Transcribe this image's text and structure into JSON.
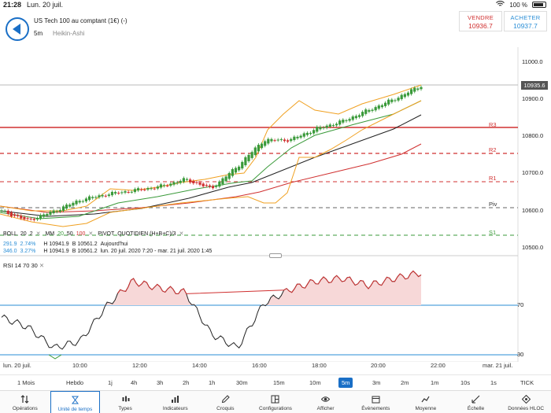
{
  "statusbar": {
    "time": "21:28",
    "date": "Lun. 20 juil.",
    "battery": "100 %"
  },
  "header": {
    "instrument": "US Tech 100 au comptant (1€) (-)",
    "timeframe": "5m",
    "chart_type": "Heikin-Ashi",
    "sell_label": "VENDRE",
    "sell_value": "10936.7",
    "buy_label": "ACHETER",
    "buy_value": "10937.7"
  },
  "colors": {
    "sell": "#d03030",
    "buy": "#2a8ed6",
    "accent": "#1a6fc6",
    "up_candle": "#3a9a3a",
    "down_candle": "#d03030",
    "bollinger": "#f0a020",
    "ma20": "#3a9a3a",
    "ma50": "#222222",
    "ma100": "#d03030"
  },
  "price_axis": {
    "labels": [
      "11000.0",
      "10900.0",
      "10800.0",
      "10700.0",
      "10600.0",
      "10500.0"
    ],
    "current": "10935.6"
  },
  "pivots": [
    {
      "label": "R3"
    },
    {
      "label": "R2"
    },
    {
      "label": "R1"
    },
    {
      "label": "Piv"
    },
    {
      "label": "S1"
    }
  ],
  "indicators": {
    "row1": {
      "boll": "BOLL",
      "boll_p1": "20",
      "boll_p2": "2",
      "mm": "MM",
      "mm_p1": "20",
      "mm_p2": "50",
      "mm_p3": "100",
      "pivot": "PIVOT",
      "pivot_text": "QUOTIDIEN (H+B+C)/3"
    },
    "row2": {
      "a": "291.9",
      "b": "2.74%",
      "h": "H 10941.9",
      "l": "B 10561.2",
      "period": "Aujourd'hui"
    },
    "row3": {
      "a": "346.0",
      "b": "3.27%",
      "h": "H 10941.9",
      "l": "B 10561.2",
      "period": "lun. 20 juil. 2020 7:20 - mar. 21 juil. 2020 1:45"
    }
  },
  "rsi": {
    "label": "RSI",
    "p1": "14",
    "p2": "70",
    "p3": "30",
    "level_high": "70",
    "level_low": "30"
  },
  "time_axis": [
    "lun. 20 juil.",
    "10:00",
    "12:00",
    "14:00",
    "16:00",
    "18:00",
    "20:00",
    "22:00",
    "mar. 21 juil."
  ],
  "timeframes": [
    "1 Mois",
    "Hebdo",
    "1j",
    "4h",
    "3h",
    "2h",
    "1h",
    "30m",
    "15m",
    "10m",
    "5m",
    "3m",
    "2m",
    "1m",
    "10s",
    "1s",
    "TICK"
  ],
  "active_timeframe": "5m",
  "toolbar": [
    {
      "label": "Opérations",
      "icon": "swap-arrows-icon"
    },
    {
      "label": "Unité de temps",
      "icon": "hourglass-icon"
    },
    {
      "label": "Types",
      "icon": "candles-icon"
    },
    {
      "label": "Indicateurs",
      "icon": "bar-chart-icon"
    },
    {
      "label": "Croquis",
      "icon": "pencil-icon"
    },
    {
      "label": "Configurations",
      "icon": "layout-icon"
    },
    {
      "label": "Afficher",
      "icon": "eye-icon"
    },
    {
      "label": "Évènements",
      "icon": "calendar-icon"
    },
    {
      "label": "Moyenne",
      "icon": "average-icon"
    },
    {
      "label": "Échelle",
      "icon": "scale-icon"
    },
    {
      "label": "Données HLOC",
      "icon": "crosshair-icon"
    }
  ],
  "chart_data": {
    "type": "line",
    "price_axis_range": [
      10480,
      11050
    ],
    "rsi_range": [
      20,
      85
    ],
    "series": [
      {
        "name": "Heikin-Ashi",
        "x": [
          "08:00",
          "09:00",
          "10:00",
          "11:00",
          "12:00",
          "13:00",
          "14:00",
          "15:00",
          "15:45",
          "16:00",
          "16:30",
          "17:00",
          "18:00",
          "19:00",
          "20:00",
          "21:00",
          "21:25"
        ],
        "values": [
          10600,
          10575,
          10600,
          10630,
          10645,
          10655,
          10665,
          10685,
          10660,
          10720,
          10790,
          10790,
          10820,
          10840,
          10870,
          10900,
          10935
        ]
      }
    ],
    "rsi_values": [
      52,
      45,
      30,
      35,
      60,
      78,
      73,
      70,
      40,
      30,
      62,
      72,
      78,
      80,
      75,
      80,
      84
    ]
  }
}
